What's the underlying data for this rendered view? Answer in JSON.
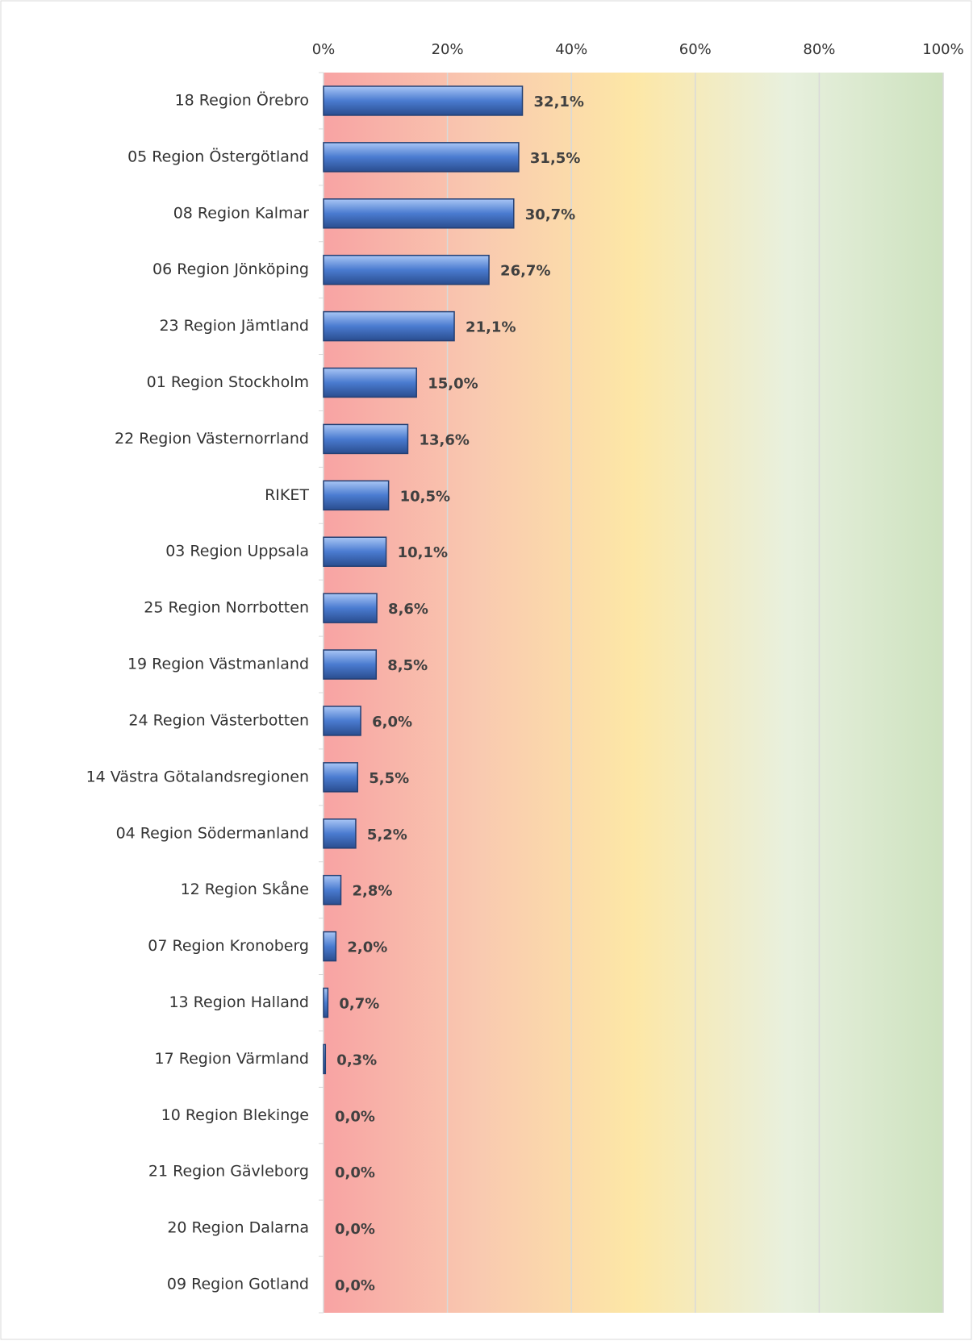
{
  "chart_data": {
    "type": "hbar",
    "categories": [
      "18 Region Örebro",
      "05 Region Östergötland",
      "08 Region Kalmar",
      "06 Region Jönköping",
      "23 Region Jämtland",
      "01 Region Stockholm",
      "22 Region Västernorrland",
      "RIKET",
      "03 Region Uppsala",
      "25 Region Norrbotten",
      "19 Region Västmanland",
      "24 Region Västerbotten",
      "14 Västra Götalandsregionen",
      "04 Region Södermanland",
      "12 Region Skåne",
      "07 Region Kronoberg",
      "13 Region Halland",
      "17 Region Värmland",
      "10 Region Blekinge",
      "21 Region Gävleborg",
      "20 Region Dalarna",
      "09 Region Gotland"
    ],
    "values": [
      32.1,
      31.5,
      30.7,
      26.7,
      21.1,
      15.0,
      13.6,
      10.5,
      10.1,
      8.6,
      8.5,
      6.0,
      5.5,
      5.2,
      2.8,
      2.0,
      0.7,
      0.3,
      0.0,
      0.0,
      0.0,
      0.0
    ],
    "value_labels": [
      "32,1%",
      "31,5%",
      "30,7%",
      "26,7%",
      "21,1%",
      "15,0%",
      "13,6%",
      "10,5%",
      "10,1%",
      "8,6%",
      "8,5%",
      "6,0%",
      "5,5%",
      "5,2%",
      "2,8%",
      "2,0%",
      "0,7%",
      "0,3%",
      "0,0%",
      "0,0%",
      "0,0%",
      "0,0%"
    ],
    "color": "#4a7bd0",
    "xlim": [
      0,
      100
    ],
    "xticks": [
      {
        "value": 0,
        "label": "0%"
      },
      {
        "value": 20,
        "label": "20%"
      },
      {
        "value": 40,
        "label": "40%"
      },
      {
        "value": 60,
        "label": "60%"
      },
      {
        "value": 80,
        "label": "80%"
      },
      {
        "value": 100,
        "label": "100%"
      }
    ],
    "grid": true
  }
}
